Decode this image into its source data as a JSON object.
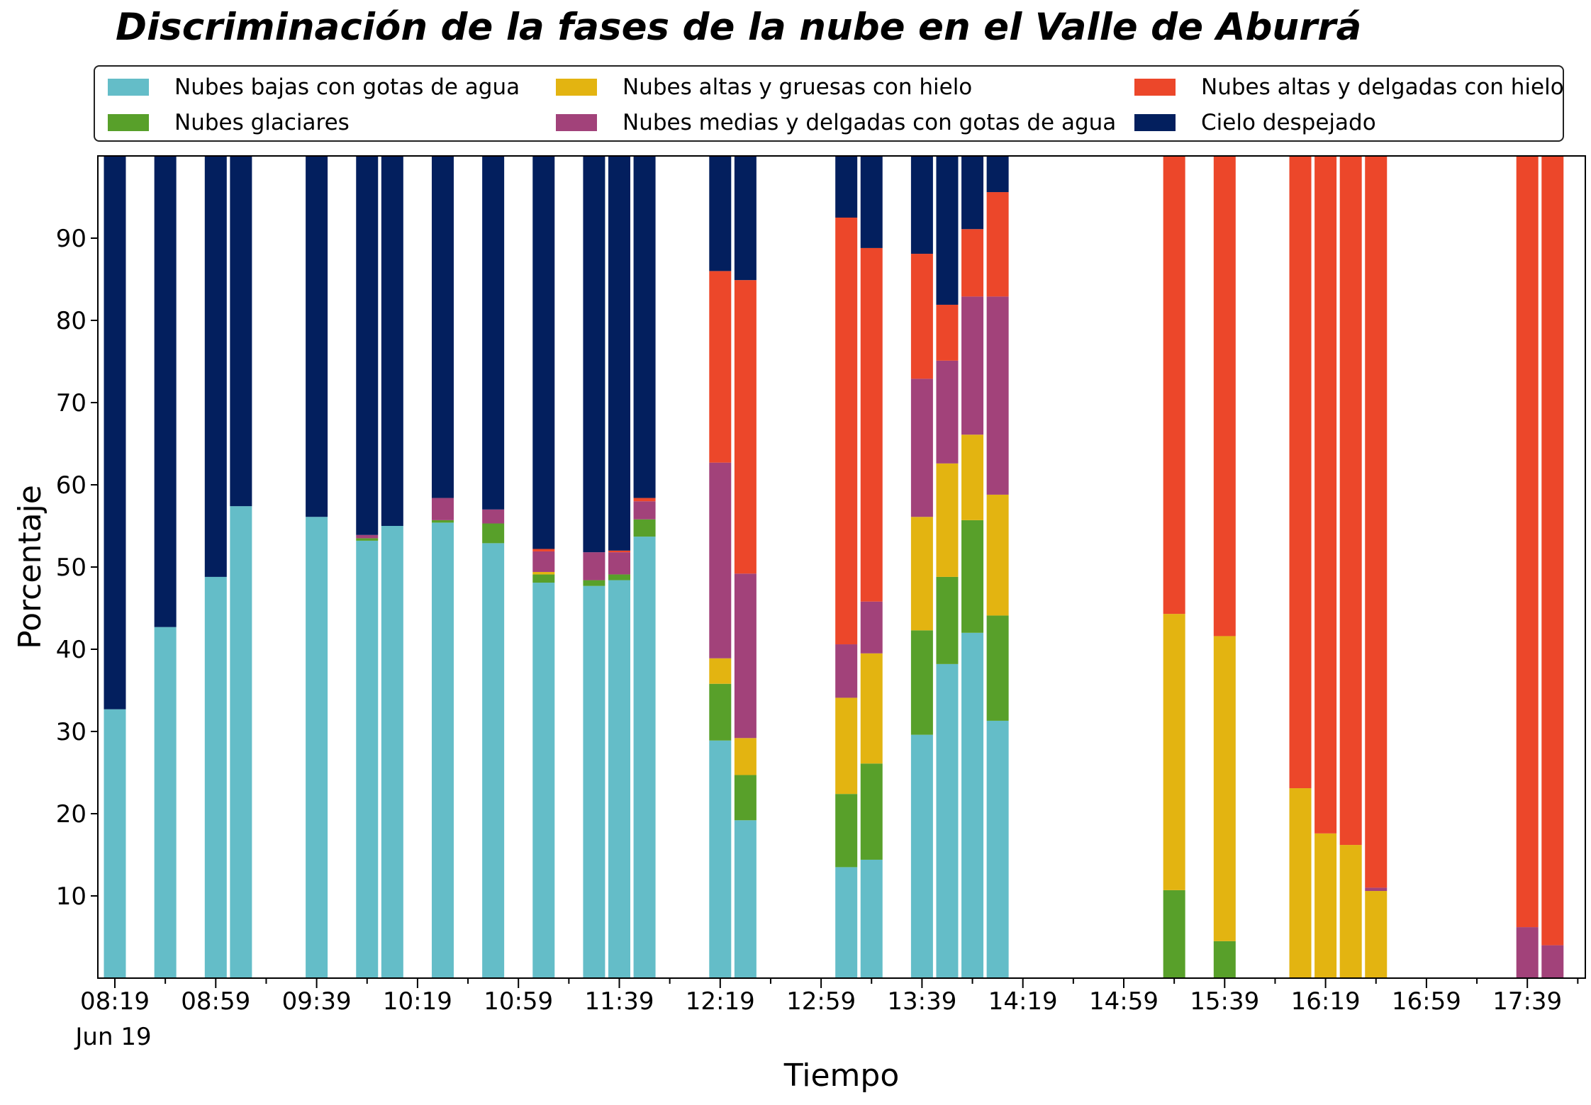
{
  "chart_data": {
    "type": "bar",
    "stacked": true,
    "title": "Discriminación de la fases de la nube en el Valle de Aburrá",
    "xlabel": "Tiempo",
    "ylabel": "Porcentaje",
    "ylim": [
      0,
      100
    ],
    "yticks": [
      10,
      20,
      30,
      40,
      50,
      60,
      70,
      80,
      90
    ],
    "xticks": [
      "08:19",
      "08:59",
      "09:39",
      "10:19",
      "10:59",
      "11:39",
      "12:19",
      "12:59",
      "13:39",
      "14:19",
      "14:59",
      "15:39",
      "16:19",
      "16:59",
      "17:39"
    ],
    "xtick_sublabel": "Jun 19",
    "grid": false,
    "legend_position": "top, above plot, 3 columns",
    "categories": [
      "08:19",
      "08:39",
      "08:59",
      "09:09",
      "09:39",
      "09:59",
      "10:09",
      "10:29",
      "10:49",
      "11:09",
      "11:29",
      "11:39",
      "11:49",
      "12:19",
      "12:29",
      "13:09",
      "13:19",
      "13:39",
      "13:49",
      "13:59",
      "14:09",
      "15:19",
      "15:39",
      "16:09",
      "16:19",
      "16:29",
      "16:39",
      "17:39",
      "17:49"
    ],
    "series": [
      {
        "name": "Nubes bajas con gotas de agua",
        "color": "#64bdc8",
        "values": [
          32.7,
          42.7,
          48.8,
          57.4,
          56.1,
          53.2,
          55.0,
          55.4,
          52.9,
          48.1,
          47.7,
          48.4,
          53.7,
          28.9,
          19.2,
          13.5,
          14.4,
          29.6,
          38.2,
          42.0,
          31.3,
          0,
          0,
          0,
          0,
          0,
          0,
          0,
          0
        ]
      },
      {
        "name": "Nubes glaciares",
        "color": "#58a02a",
        "values": [
          0,
          0,
          0,
          0,
          0,
          0.3,
          0,
          0.3,
          2.4,
          1.0,
          0.7,
          0.7,
          2.1,
          6.9,
          5.5,
          8.9,
          11.7,
          12.7,
          10.6,
          13.7,
          12.8,
          10.7,
          4.5,
          0,
          0,
          0,
          0,
          0,
          0
        ]
      },
      {
        "name": "Nubes altas y gruesas con hielo",
        "color": "#e3b411",
        "values": [
          0,
          0,
          0,
          0,
          0,
          0,
          0,
          0,
          0,
          0.3,
          0,
          0,
          0,
          3.1,
          4.5,
          11.7,
          13.4,
          13.8,
          13.8,
          10.4,
          14.7,
          33.6,
          37.1,
          23.1,
          17.6,
          16.2,
          10.6,
          0,
          0
        ]
      },
      {
        "name": "Nubes medias y delgadas con gotas de agua",
        "color": "#a2427a",
        "values": [
          0,
          0,
          0,
          0,
          0,
          0.4,
          0,
          2.7,
          1.7,
          2.5,
          3.4,
          2.7,
          2.2,
          23.8,
          20.0,
          6.5,
          6.3,
          16.8,
          12.5,
          16.8,
          24.1,
          0,
          0,
          0,
          0,
          0,
          0.4,
          6.2,
          4.0
        ]
      },
      {
        "name": "Nubes altas y delgadas con hielo",
        "color": "#ec472a",
        "values": [
          0,
          0,
          0,
          0,
          0,
          0,
          0,
          0,
          0,
          0.3,
          0,
          0.2,
          0.4,
          23.3,
          35.7,
          51.9,
          43.0,
          15.2,
          6.8,
          8.2,
          12.7,
          55.7,
          58.4,
          76.9,
          82.4,
          83.8,
          89.0,
          93.8,
          96.0
        ]
      },
      {
        "name": "Cielo despejado",
        "color": "#031f5e",
        "values": [
          67.3,
          57.3,
          51.2,
          42.6,
          43.9,
          46.1,
          45.0,
          41.6,
          43.0,
          47.8,
          48.2,
          48.0,
          41.6,
          14.0,
          15.1,
          7.5,
          11.2,
          11.9,
          18.1,
          8.9,
          4.4,
          0,
          0,
          0,
          0,
          0,
          0,
          0,
          0
        ]
      }
    ]
  }
}
